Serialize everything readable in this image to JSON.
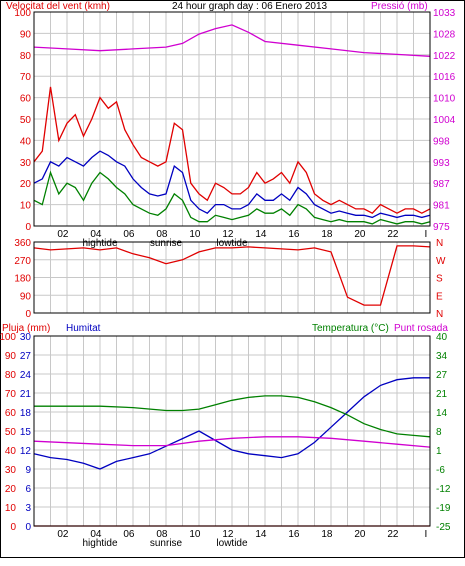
{
  "colors": {
    "frame": "#000000",
    "grid": "#c8c8c8",
    "red": "#e00000",
    "blue": "#0000c0",
    "green": "#008000",
    "magenta": "#d000d0"
  },
  "top_panel": {
    "title_left": "Velocitat del vent (kmh)",
    "title_center": "24 hour graph day : 06 Enero 2013",
    "title_right": "Pressió (mb)"
  },
  "bottom_panel": {
    "title_pluja": "Pluja (mm)",
    "title_humitat": "Humitat",
    "title_temperatura": "Temperatura (°C)",
    "title_punt_rosada": "Punt rosada"
  },
  "x_axis": {
    "ticks": [
      "02",
      "04",
      "06",
      "08",
      "10",
      "12",
      "14",
      "16",
      "18",
      "20",
      "22",
      "I"
    ],
    "tide_labels": [
      "hightide",
      "sunrise",
      "lowtide"
    ]
  },
  "chart_data": [
    {
      "type": "line",
      "name": "wind-pressure",
      "x_range": [
        0,
        24
      ],
      "left_axis": {
        "label": "Velocitat del vent (kmh)",
        "ylim": [
          0,
          100
        ],
        "ticks": [
          "0",
          "10",
          "20",
          "30",
          "40",
          "50",
          "60",
          "70",
          "80",
          "90",
          "100"
        ]
      },
      "right_axis": {
        "label": "Pressió (mb)",
        "ylim": [
          975,
          1033
        ],
        "ticks": [
          "975",
          "981",
          "987",
          "993",
          "998",
          "1004",
          "1010",
          "1016",
          "1022",
          "1028",
          "1033"
        ]
      },
      "series": [
        {
          "name": "Velocitat del vent (kmh)",
          "color_key": "red",
          "axis": "left",
          "x": [
            0,
            0.5,
            1,
            1.5,
            2,
            2.5,
            3,
            3.5,
            4,
            4.5,
            5,
            5.5,
            6,
            6.5,
            7,
            7.5,
            8,
            8.5,
            9,
            9.5,
            10,
            10.5,
            11,
            11.5,
            12,
            12.5,
            13,
            13.5,
            14,
            14.5,
            15,
            15.5,
            16,
            16.5,
            17,
            17.5,
            18,
            18.5,
            19,
            19.5,
            20,
            20.5,
            21,
            21.5,
            22,
            22.5,
            23,
            23.5,
            24
          ],
          "values": [
            30,
            35,
            65,
            40,
            48,
            52,
            42,
            50,
            60,
            55,
            58,
            45,
            38,
            32,
            30,
            28,
            30,
            48,
            45,
            20,
            15,
            12,
            20,
            18,
            15,
            15,
            18,
            25,
            20,
            22,
            25,
            20,
            30,
            25,
            15,
            12,
            10,
            12,
            10,
            8,
            8,
            6,
            10,
            8,
            6,
            8,
            8,
            6,
            8
          ]
        },
        {
          "name": "Wind average (blue)",
          "color_key": "blue",
          "axis": "left",
          "x": [
            0,
            0.5,
            1,
            1.5,
            2,
            2.5,
            3,
            3.5,
            4,
            4.5,
            5,
            5.5,
            6,
            6.5,
            7,
            7.5,
            8,
            8.5,
            9,
            9.5,
            10,
            10.5,
            11,
            11.5,
            12,
            12.5,
            13,
            13.5,
            14,
            14.5,
            15,
            15.5,
            16,
            16.5,
            17,
            17.5,
            18,
            18.5,
            19,
            19.5,
            20,
            20.5,
            21,
            21.5,
            22,
            22.5,
            23,
            23.5,
            24
          ],
          "values": [
            20,
            22,
            30,
            28,
            32,
            30,
            28,
            32,
            35,
            33,
            30,
            28,
            22,
            18,
            15,
            14,
            15,
            28,
            25,
            12,
            8,
            6,
            10,
            10,
            8,
            8,
            10,
            15,
            12,
            12,
            15,
            12,
            18,
            15,
            10,
            8,
            6,
            7,
            6,
            5,
            5,
            4,
            6,
            5,
            4,
            5,
            5,
            4,
            5
          ]
        },
        {
          "name": "Wind min (green)",
          "color_key": "green",
          "axis": "left",
          "x": [
            0,
            0.5,
            1,
            1.5,
            2,
            2.5,
            3,
            3.5,
            4,
            4.5,
            5,
            5.5,
            6,
            6.5,
            7,
            7.5,
            8,
            8.5,
            9,
            9.5,
            10,
            10.5,
            11,
            11.5,
            12,
            12.5,
            13,
            13.5,
            14,
            14.5,
            15,
            15.5,
            16,
            16.5,
            17,
            17.5,
            18,
            18.5,
            19,
            19.5,
            20,
            20.5,
            21,
            21.5,
            22,
            22.5,
            23,
            23.5,
            24
          ],
          "values": [
            12,
            10,
            25,
            15,
            20,
            18,
            12,
            20,
            25,
            22,
            18,
            15,
            10,
            8,
            6,
            5,
            8,
            15,
            12,
            4,
            2,
            2,
            5,
            4,
            3,
            4,
            5,
            8,
            6,
            6,
            8,
            5,
            10,
            8,
            4,
            3,
            2,
            3,
            2,
            2,
            2,
            1,
            3,
            2,
            1,
            2,
            2,
            1,
            2
          ]
        },
        {
          "name": "Pressió (mb)",
          "color_key": "magenta",
          "axis": "right",
          "x": [
            0,
            2,
            4,
            6,
            8,
            9,
            10,
            11,
            12,
            13,
            14,
            16,
            18,
            20,
            22,
            24
          ],
          "values": [
            1023.5,
            1023.0,
            1022.5,
            1023.0,
            1023.5,
            1024.5,
            1027.0,
            1028.5,
            1029.5,
            1027.5,
            1025.0,
            1024.0,
            1023.0,
            1022.0,
            1021.5,
            1021.0
          ]
        }
      ]
    },
    {
      "type": "line",
      "name": "wind-direction",
      "x_range": [
        0,
        24
      ],
      "left_axis": {
        "ylim": [
          0,
          360
        ],
        "ticks": [
          "0",
          "90",
          "180",
          "270",
          "360"
        ]
      },
      "right_axis": {
        "ticks": [
          "N",
          "W",
          "S",
          "E",
          "N"
        ]
      },
      "series": [
        {
          "name": "Wind direction",
          "color_key": "red",
          "x": [
            0,
            1,
            2,
            3,
            4,
            5,
            6,
            7,
            8,
            9,
            10,
            11,
            12,
            13,
            14,
            15,
            16,
            17,
            18,
            19,
            20,
            21,
            22,
            23,
            24
          ],
          "values": [
            330,
            320,
            325,
            330,
            320,
            330,
            300,
            280,
            250,
            270,
            310,
            330,
            330,
            335,
            330,
            325,
            320,
            330,
            310,
            80,
            40,
            40,
            340,
            340,
            335
          ]
        }
      ]
    },
    {
      "type": "line",
      "name": "rain-humidity-temperature",
      "x_range": [
        0,
        24
      ],
      "left_axis_pluja": {
        "label": "Pluja (mm)",
        "ylim": [
          0,
          30
        ],
        "ticks": [
          "0",
          "3",
          "6",
          "9",
          "12",
          "15",
          "18",
          "21",
          "24",
          "27",
          "30"
        ]
      },
      "left_axis_humitat": {
        "label": "Humitat",
        "ylim": [
          0,
          100
        ],
        "ticks": [
          "0",
          "10",
          "20",
          "30",
          "40",
          "50",
          "60",
          "70",
          "80",
          "90",
          "100"
        ]
      },
      "right_axis": {
        "label": "Temperatura (°C)",
        "ylim": [
          -25,
          40
        ],
        "ticks": [
          "-25",
          "-19",
          "-12",
          "-6",
          "1",
          "8",
          "14",
          "21",
          "27",
          "34",
          "40"
        ]
      },
      "series": [
        {
          "name": "Humitat",
          "color_key": "blue",
          "axis": "humitat",
          "x": [
            0,
            1,
            2,
            3,
            4,
            5,
            6,
            7,
            8,
            9,
            10,
            11,
            12,
            13,
            14,
            15,
            16,
            17,
            18,
            19,
            20,
            21,
            22,
            23,
            24
          ],
          "values": [
            38,
            36,
            35,
            33,
            30,
            34,
            36,
            38,
            42,
            46,
            50,
            45,
            40,
            38,
            37,
            36,
            38,
            44,
            52,
            60,
            68,
            74,
            77,
            78,
            78
          ]
        },
        {
          "name": "Temperatura (°C)",
          "color_key": "green",
          "axis": "right",
          "x": [
            0,
            2,
            4,
            6,
            8,
            9,
            10,
            11,
            12,
            13,
            14,
            15,
            16,
            17,
            18,
            19,
            20,
            21,
            22,
            23,
            24
          ],
          "values": [
            16,
            16,
            16,
            15.5,
            14.5,
            14.5,
            15,
            16.5,
            18,
            19,
            19.5,
            19.5,
            19,
            17.5,
            15.5,
            13,
            10,
            8,
            6.5,
            6,
            5.5
          ]
        },
        {
          "name": "Punt rosada",
          "color_key": "magenta",
          "axis": "right",
          "x": [
            0,
            2,
            4,
            6,
            8,
            10,
            12,
            14,
            16,
            18,
            20,
            22,
            24
          ],
          "values": [
            4,
            3.5,
            3,
            2.5,
            2.5,
            4,
            5,
            5.5,
            5.5,
            5,
            4,
            3,
            2
          ]
        },
        {
          "name": "Pluja (mm)",
          "color_key": "red",
          "axis": "pluja",
          "x": [
            0,
            24
          ],
          "values": [
            0,
            0
          ]
        }
      ]
    }
  ]
}
